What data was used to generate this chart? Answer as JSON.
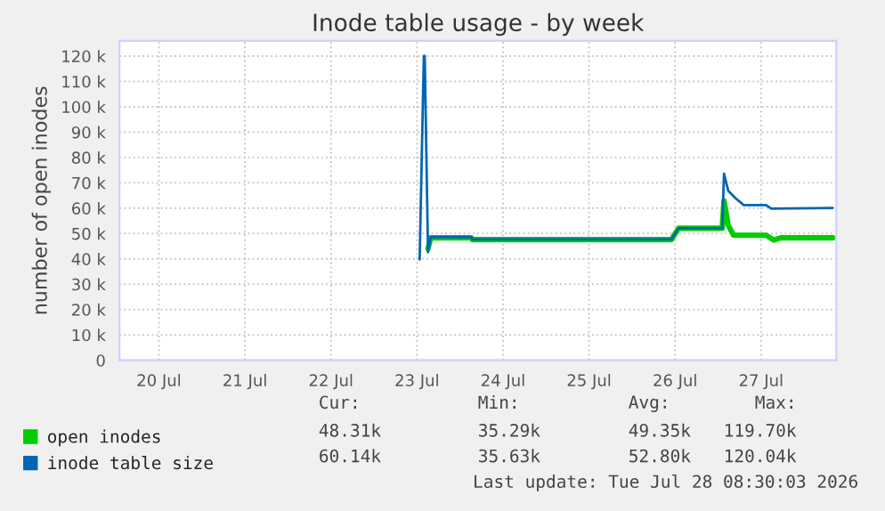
{
  "chart_data": {
    "type": "line",
    "title": "Inode table usage - by week",
    "ylabel": "number of open inodes",
    "series": [
      {
        "name": "open inodes",
        "color": "#00cc00",
        "x": [
          "2026-07-23T15:05",
          "2026-07-23T15:50",
          "2026-07-24T03:10",
          "2026-07-24T03:25",
          "2026-07-26T11:00",
          "2026-07-26T13:00",
          "2026-07-27T01:10",
          "2026-07-27T01:40",
          "2026-07-27T02:50",
          "2026-07-27T04:20",
          "2026-07-27T13:25",
          "2026-07-27T15:35",
          "2026-07-27T17:30",
          "2026-07-28T08:00"
        ],
        "values": [
          44000,
          48300,
          48300,
          47600,
          47600,
          52100,
          52100,
          62900,
          53300,
          49300,
          49300,
          47400,
          48300,
          48300
        ]
      },
      {
        "name": "inode table size",
        "color": "#0066b3",
        "x": [
          "2026-07-23T12:45",
          "2026-07-23T13:55",
          "2026-07-23T14:10",
          "2026-07-23T15:05",
          "2026-07-23T15:50",
          "2026-07-24T03:10",
          "2026-07-24T03:25",
          "2026-07-26T11:00",
          "2026-07-26T13:00",
          "2026-07-27T01:10",
          "2026-07-27T01:40",
          "2026-07-27T02:50",
          "2026-07-27T04:50",
          "2026-07-27T07:10",
          "2026-07-27T13:25",
          "2026-07-27T14:50",
          "2026-07-28T08:00"
        ],
        "values": [
          39800,
          120000,
          120000,
          42600,
          48600,
          48600,
          47700,
          47700,
          52100,
          52100,
          73600,
          66900,
          64000,
          61200,
          61200,
          59800,
          60100
        ]
      }
    ],
    "xlim": [
      "2026-07-20T01:00",
      "2026-07-28T09:00"
    ],
    "xticks": [
      {
        "value": "2026-07-20T12:00",
        "label": "20 Jul"
      },
      {
        "value": "2026-07-21T12:00",
        "label": "21 Jul"
      },
      {
        "value": "2026-07-22T12:00",
        "label": "22 Jul"
      },
      {
        "value": "2026-07-23T12:00",
        "label": "23 Jul"
      },
      {
        "value": "2026-07-24T12:00",
        "label": "24 Jul"
      },
      {
        "value": "2026-07-25T12:00",
        "label": "25 Jul"
      },
      {
        "value": "2026-07-26T12:00",
        "label": "26 Jul"
      },
      {
        "value": "2026-07-27T12:00",
        "label": "27 Jul"
      }
    ],
    "ylim": [
      0,
      126000
    ],
    "yticks": [
      {
        "value": 0,
        "label": "0"
      },
      {
        "value": 10000,
        "label": "10 k"
      },
      {
        "value": 20000,
        "label": "20 k"
      },
      {
        "value": 30000,
        "label": "30 k"
      },
      {
        "value": 40000,
        "label": "40 k"
      },
      {
        "value": 50000,
        "label": "50 k"
      },
      {
        "value": 60000,
        "label": "60 k"
      },
      {
        "value": 70000,
        "label": "70 k"
      },
      {
        "value": 80000,
        "label": "80 k"
      },
      {
        "value": 90000,
        "label": "90 k"
      },
      {
        "value": 100000,
        "label": "100 k"
      },
      {
        "value": 110000,
        "label": "110 k"
      },
      {
        "value": 120000,
        "label": "120 k"
      }
    ],
    "grid": true,
    "legend": "bottom left",
    "marker": "none",
    "line_style": "solid",
    "annotations": [
      "Cur:",
      "Min:",
      "Avg:",
      "Max:",
      "48.31k",
      "35.29k",
      "49.35k",
      "119.70k",
      "60.14k",
      "35.63k",
      "52.80k",
      "120.04k",
      "Last update: Tue Jul 28 08:30:03 2026"
    ]
  }
}
